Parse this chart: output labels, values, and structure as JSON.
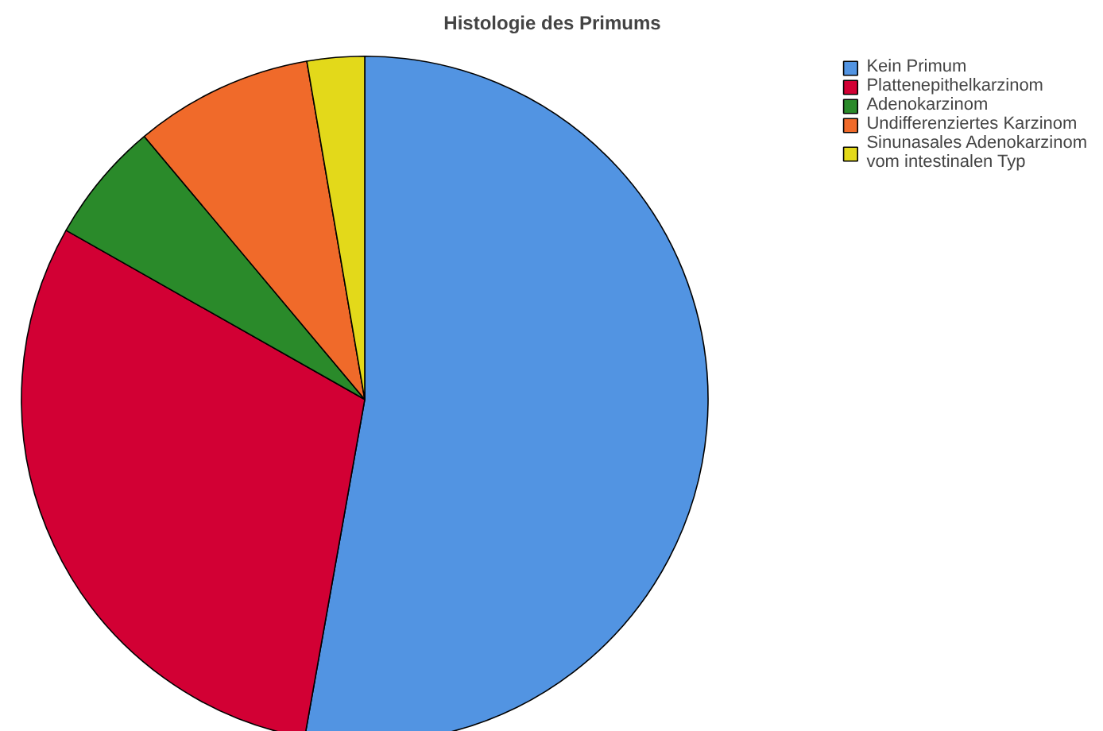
{
  "chart_data": {
    "type": "pie",
    "title": "Histologie des Primums",
    "categories": [
      "Kein Primum",
      "Plattenepithelkarzinom",
      "Adenokarzinom",
      "Undifferenziertes Karzinom",
      "Sinunasales Adenokarzinom\nvom intestinalen Typ"
    ],
    "values": [
      52.8,
      30.4,
      5.7,
      8.4,
      2.7
    ],
    "colors": [
      "#5294e2",
      "#d20034",
      "#2a8a2a",
      "#f06a2a",
      "#e3d91a"
    ],
    "legend": "top right"
  }
}
